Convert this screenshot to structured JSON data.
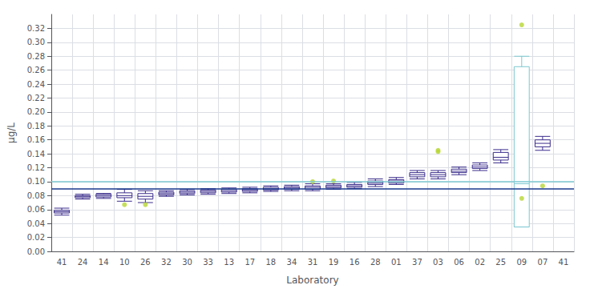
{
  "chart_data": {
    "type": "boxplot",
    "xlabel": "Laboratory",
    "ylabel": "μg/L",
    "categories": [
      "41",
      "24",
      "14",
      "10",
      "26",
      "32",
      "30",
      "33",
      "13",
      "17",
      "18",
      "34",
      "31",
      "19",
      "16",
      "28",
      "01",
      "37",
      "03",
      "06",
      "02",
      "25",
      "09",
      "07",
      "41"
    ],
    "boxes": [
      {
        "whislo": 0.052,
        "q1": 0.055,
        "med": 0.057,
        "q3": 0.059,
        "whishi": 0.062,
        "fliers": []
      },
      {
        "whislo": 0.075,
        "q1": 0.077,
        "med": 0.079,
        "q3": 0.08,
        "whishi": 0.082,
        "fliers": []
      },
      {
        "whislo": 0.076,
        "q1": 0.078,
        "med": 0.08,
        "q3": 0.082,
        "whishi": 0.083,
        "fliers": []
      },
      {
        "whislo": 0.072,
        "q1": 0.077,
        "med": 0.08,
        "q3": 0.084,
        "whishi": 0.089,
        "fliers": [
          0.067
        ]
      },
      {
        "whislo": 0.07,
        "q1": 0.075,
        "med": 0.079,
        "q3": 0.083,
        "whishi": 0.087,
        "fliers": [
          0.067
        ]
      },
      {
        "whislo": 0.079,
        "q1": 0.081,
        "med": 0.083,
        "q3": 0.085,
        "whishi": 0.087,
        "fliers": []
      },
      {
        "whislo": 0.081,
        "q1": 0.083,
        "med": 0.085,
        "q3": 0.087,
        "whishi": 0.089,
        "fliers": []
      },
      {
        "whislo": 0.082,
        "q1": 0.084,
        "med": 0.086,
        "q3": 0.088,
        "whishi": 0.09,
        "fliers": []
      },
      {
        "whislo": 0.083,
        "q1": 0.085,
        "med": 0.087,
        "q3": 0.089,
        "whishi": 0.091,
        "fliers": []
      },
      {
        "whislo": 0.084,
        "q1": 0.086,
        "med": 0.088,
        "q3": 0.09,
        "whishi": 0.092,
        "fliers": []
      },
      {
        "whislo": 0.086,
        "q1": 0.088,
        "med": 0.09,
        "q3": 0.092,
        "whishi": 0.094,
        "fliers": []
      },
      {
        "whislo": 0.087,
        "q1": 0.089,
        "med": 0.091,
        "q3": 0.093,
        "whishi": 0.095,
        "fliers": []
      },
      {
        "whislo": 0.087,
        "q1": 0.089,
        "med": 0.092,
        "q3": 0.094,
        "whishi": 0.097,
        "fliers": [
          0.1
        ]
      },
      {
        "whislo": 0.089,
        "q1": 0.091,
        "med": 0.093,
        "q3": 0.095,
        "whishi": 0.097,
        "fliers": [
          0.101
        ]
      },
      {
        "whislo": 0.09,
        "q1": 0.092,
        "med": 0.094,
        "q3": 0.096,
        "whishi": 0.099,
        "fliers": []
      },
      {
        "whislo": 0.093,
        "q1": 0.096,
        "med": 0.098,
        "q3": 0.101,
        "whishi": 0.104,
        "fliers": []
      },
      {
        "whislo": 0.096,
        "q1": 0.098,
        "med": 0.101,
        "q3": 0.103,
        "whishi": 0.106,
        "fliers": []
      },
      {
        "whislo": 0.104,
        "q1": 0.107,
        "med": 0.11,
        "q3": 0.113,
        "whishi": 0.116,
        "fliers": []
      },
      {
        "whislo": 0.104,
        "q1": 0.107,
        "med": 0.11,
        "q3": 0.113,
        "whishi": 0.116,
        "fliers": [
          0.143,
          0.145
        ]
      },
      {
        "whislo": 0.11,
        "q1": 0.113,
        "med": 0.115,
        "q3": 0.118,
        "whishi": 0.121,
        "fliers": []
      },
      {
        "whislo": 0.116,
        "q1": 0.119,
        "med": 0.121,
        "q3": 0.124,
        "whishi": 0.127,
        "fliers": []
      },
      {
        "whislo": 0.127,
        "q1": 0.131,
        "med": 0.135,
        "q3": 0.142,
        "whishi": 0.146,
        "fliers": []
      },
      {
        "whislo": 0.035,
        "q1": 0.035,
        "med": 0.097,
        "q3": 0.265,
        "whishi": 0.28,
        "fliers": [
          0.076,
          0.325
        ]
      },
      {
        "whislo": 0.145,
        "q1": 0.15,
        "med": 0.155,
        "q3": 0.16,
        "whishi": 0.165,
        "fliers": [
          0.094
        ]
      },
      {
        "whislo": null,
        "q1": null,
        "med": null,
        "q3": null,
        "whishi": null,
        "fliers": []
      }
    ],
    "colors": [
      "#3b2d8c",
      "#3b2d8c",
      "#3b2d8c",
      "#3b2d8c",
      "#3b2d8c",
      "#3b2d8c",
      "#3b2d8c",
      "#3b2d8c",
      "#3b2d8c",
      "#3b2d8c",
      "#3b2d8c",
      "#3b2d8c",
      "#3b2d8c",
      "#3b2d8c",
      "#3b2d8c",
      "#3b2d8c",
      "#3b2d8c",
      "#3b2d8c",
      "#3b2d8c",
      "#3b2d8c",
      "#3b2d8c",
      "#3b2d8c",
      "#7cc8d0",
      "#3b2d8c",
      "#3b2d8c"
    ],
    "hlines": [
      {
        "value": 0.1,
        "color": "#7cc8d0"
      },
      {
        "value": 0.093,
        "color": "#1a3a8c"
      }
    ],
    "ylim": [
      0,
      0.34
    ],
    "yticks": [
      {
        "value": 0,
        "label": "0.00"
      },
      {
        "value": 0.02,
        "label": "0.02"
      },
      {
        "value": 0.04,
        "label": "0.04"
      },
      {
        "value": 0.06,
        "label": "0.06"
      },
      {
        "value": 0.08,
        "label": "0.08"
      },
      {
        "value": 0.1,
        "label": "0.10"
      },
      {
        "value": 0.12,
        "label": "0.12"
      },
      {
        "value": 0.14,
        "label": "0.14"
      },
      {
        "value": 0.16,
        "label": "0.16"
      },
      {
        "value": 0.18,
        "label": "0.18"
      },
      {
        "value": 0.2,
        "label": "0.20"
      },
      {
        "value": 0.22,
        "label": "0.22"
      },
      {
        "value": 0.24,
        "label": "0.24"
      },
      {
        "value": 0.26,
        "label": "0.26"
      },
      {
        "value": 0.28,
        "label": "0.28"
      },
      {
        "value": 0.3,
        "label": "0.30"
      },
      {
        "value": 0.32,
        "label": "0.32"
      }
    ],
    "grid": true
  }
}
